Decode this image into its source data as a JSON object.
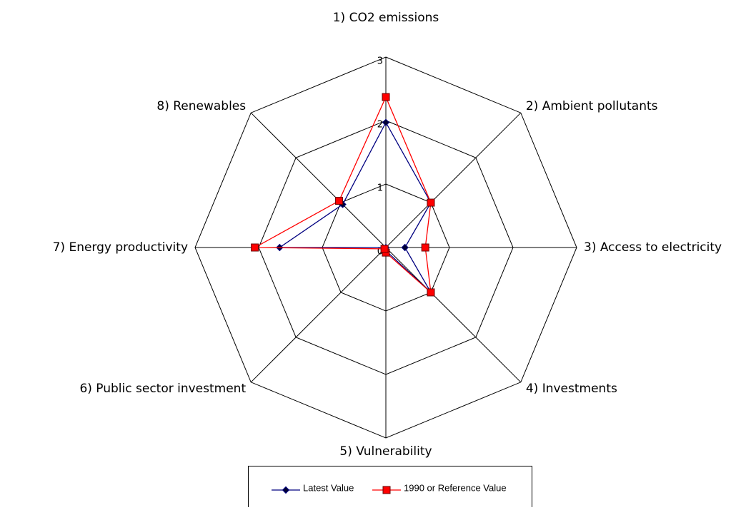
{
  "chart_data": {
    "type": "radar",
    "categories": [
      "1) CO2 emissions",
      "2) Ambient pollutants",
      "3) Access to electricity",
      "4) Investments",
      "5) Vulnerability",
      "6) Public sector investment",
      "7) Energy productivity",
      "8) Renewables"
    ],
    "series": [
      {
        "name": "Latest Value",
        "color": "#000080",
        "values": [
          1.97,
          1.0,
          0.3,
          1.0,
          0.05,
          0.0,
          1.67,
          0.96
        ]
      },
      {
        "name": "1990 or Reference Value",
        "color": "#ff0000",
        "values": [
          2.37,
          1.0,
          0.62,
          1.0,
          0.08,
          0.03,
          2.06,
          1.04
        ]
      }
    ],
    "ylim": [
      0,
      3
    ],
    "yticks": [
      0,
      1,
      2,
      3
    ],
    "grid": true
  }
}
